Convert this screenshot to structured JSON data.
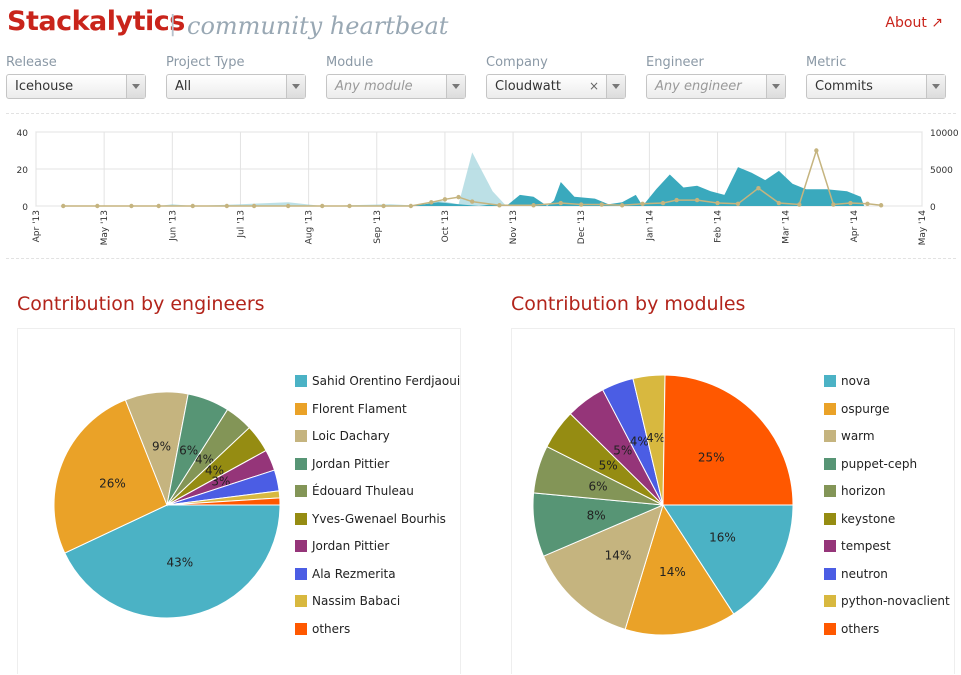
{
  "header": {
    "logo": "Stackalytics",
    "separator": "|",
    "tagline": "community heartbeat",
    "about": "About ↗"
  },
  "filters": [
    {
      "label": "Release",
      "value": "Icehouse",
      "placeholder": false,
      "clearable": false
    },
    {
      "label": "Project Type",
      "value": "All",
      "placeholder": false,
      "clearable": false
    },
    {
      "label": "Module",
      "value": "Any module",
      "placeholder": true,
      "clearable": false
    },
    {
      "label": "Company",
      "value": "Cloudwatt",
      "placeholder": false,
      "clearable": true
    },
    {
      "label": "Engineer",
      "value": "Any engineer",
      "placeholder": true,
      "clearable": false
    },
    {
      "label": "Metric",
      "value": "Commits",
      "placeholder": false,
      "clearable": false
    }
  ],
  "clear_symbol": "×",
  "timeline": {
    "y_left_ticks": [
      "40",
      "20",
      "0"
    ],
    "y_right_ticks": [
      "10000",
      "5000",
      "0"
    ],
    "x_labels": [
      "Apr '13",
      "May '13",
      "Jun '13",
      "Jul '13",
      "Aug '13",
      "Sep '13",
      "Oct '13",
      "Nov '13",
      "Dec '13",
      "Jan '14",
      "Feb '14",
      "Mar '14",
      "Apr '14",
      "May '14"
    ]
  },
  "engineers": {
    "title": "Contribution by engineers",
    "legend": [
      "Sahid Orentino Ferdjaoui",
      "Florent Flament",
      "Loic Dachary",
      "Jordan Pittier",
      "Édouard Thuleau",
      "Yves-Gwenael Bourhis",
      "Jordan Pittier",
      "Ala Rezmerita",
      "Nassim Babaci",
      "others"
    ]
  },
  "modules": {
    "title": "Contribution by modules",
    "legend": [
      "nova",
      "ospurge",
      "warm",
      "puppet-ceph",
      "horizon",
      "keystone",
      "tempest",
      "neutron",
      "python-novaclient",
      "others"
    ]
  },
  "colors": [
    "#4bb2c5",
    "#eaa228",
    "#c5b47f",
    "#579575",
    "#839557",
    "#958c12",
    "#953579",
    "#4b5de4",
    "#d8b83f",
    "#ff5800"
  ],
  "chart_data": [
    {
      "type": "area",
      "title": "",
      "series": [
        {
          "values_months": [
            "Apr '13",
            "May '13",
            "Jun '13",
            "Jul '13",
            "Aug '13",
            "Sep '13",
            "Oct '13",
            "Nov '13",
            "Dec '13",
            "Jan '14",
            "Feb '14",
            "Mar '14",
            "Apr '14"
          ],
          "commits_peak_approx": [
            0,
            1,
            3,
            3,
            1,
            3,
            29,
            6,
            13,
            17,
            21,
            18,
            9
          ]
        }
      ],
      "ylim_left": [
        0,
        40
      ],
      "ylim_right": [
        0,
        10000
      ]
    },
    {
      "type": "pie",
      "title": "Contribution by engineers",
      "categories": [
        "Sahid Orentino Ferdjaoui",
        "Florent Flament",
        "Loic Dachary",
        "Jordan Pittier",
        "Édouard Thuleau",
        "Yves-Gwenael Bourhis",
        "Jordan Pittier",
        "Ala Rezmerita",
        "Nassim Babaci",
        "others"
      ],
      "values": [
        43,
        26,
        9,
        6,
        4,
        4,
        3,
        3,
        1,
        1
      ],
      "labels": [
        "43%",
        "26%",
        "9%",
        "6%",
        "4%",
        "4%",
        "3%",
        "",
        "",
        ""
      ]
    },
    {
      "type": "pie",
      "title": "Contribution by modules",
      "categories": [
        "nova",
        "ospurge",
        "warm",
        "puppet-ceph",
        "horizon",
        "keystone",
        "tempest",
        "neutron",
        "python-novaclient",
        "others"
      ],
      "values": [
        16,
        14,
        14,
        8,
        6,
        5,
        5,
        4,
        4,
        25
      ],
      "labels": [
        "16%",
        "14%",
        "14%",
        "8%",
        "6%",
        "5%",
        "5%",
        "4%",
        "4%",
        "25%"
      ]
    }
  ]
}
